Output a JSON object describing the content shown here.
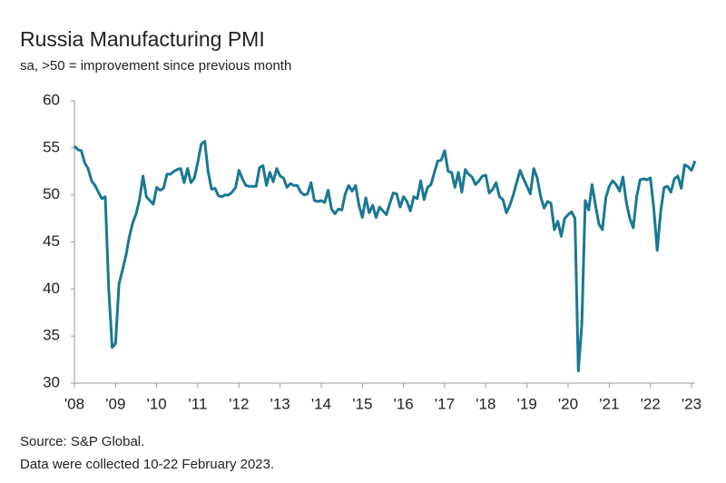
{
  "chart_data": {
    "type": "line",
    "title": "Russia Manufacturing PMI",
    "subtitle": "sa, >50 = improvement since previous month",
    "source": "Source: S&P Global.",
    "note": "Data were collected 10-22 February 2023.",
    "categories": [
      "'08",
      null,
      null,
      null,
      null,
      null,
      null,
      null,
      null,
      null,
      null,
      null,
      "'09",
      null,
      null,
      null,
      null,
      null,
      null,
      null,
      null,
      null,
      null,
      null,
      "'10",
      null,
      null,
      null,
      null,
      null,
      null,
      null,
      null,
      null,
      null,
      null,
      "'11",
      null,
      null,
      null,
      null,
      null,
      null,
      null,
      null,
      null,
      null,
      null,
      "'12",
      null,
      null,
      null,
      null,
      null,
      null,
      null,
      null,
      null,
      null,
      null,
      "'13",
      null,
      null,
      null,
      null,
      null,
      null,
      null,
      null,
      null,
      null,
      null,
      "'14",
      null,
      null,
      null,
      null,
      null,
      null,
      null,
      null,
      null,
      null,
      null,
      "'15",
      null,
      null,
      null,
      null,
      null,
      null,
      null,
      null,
      null,
      null,
      null,
      "'16",
      null,
      null,
      null,
      null,
      null,
      null,
      null,
      null,
      null,
      null,
      null,
      "'17",
      null,
      null,
      null,
      null,
      null,
      null,
      null,
      null,
      null,
      null,
      null,
      "'18",
      null,
      null,
      null,
      null,
      null,
      null,
      null,
      null,
      null,
      null,
      null,
      "'19",
      null,
      null,
      null,
      null,
      null,
      null,
      null,
      null,
      null,
      null,
      null,
      "'20",
      null,
      null,
      null,
      null,
      null,
      null,
      null,
      null,
      null,
      null,
      null,
      "'21",
      null,
      null,
      null,
      null,
      null,
      null,
      null,
      null,
      null,
      null,
      null,
      "'22",
      null,
      null,
      null,
      null,
      null,
      null,
      null,
      null,
      null,
      null,
      null,
      "'23",
      null
    ],
    "series": [
      {
        "name": "Russia Manufacturing PMI",
        "color": "#1a7892",
        "values": [
          55.2,
          54.8,
          54.7,
          53.4,
          52.8,
          51.5,
          51.0,
          50.3,
          49.6,
          49.8,
          40.0,
          33.8,
          34.2,
          40.5,
          42.0,
          43.5,
          45.5,
          47.0,
          48.0,
          49.5,
          52.0,
          49.8,
          49.4,
          49.0,
          50.8,
          50.5,
          50.7,
          52.2,
          52.2,
          52.5,
          52.7,
          52.8,
          51.3,
          52.8,
          51.3,
          51.8,
          53.5,
          55.4,
          55.7,
          52.5,
          50.6,
          50.7,
          49.9,
          49.8,
          50.0,
          50.0,
          50.3,
          50.8,
          52.6,
          51.7,
          51.0,
          50.9,
          50.9,
          50.9,
          52.9,
          53.1,
          51.0,
          52.4,
          51.4,
          52.8,
          52.0,
          51.8,
          50.8,
          51.2,
          51.0,
          51.0,
          50.3,
          50.0,
          50.1,
          51.3,
          49.4,
          49.3,
          49.4,
          49.2,
          50.5,
          48.5,
          48.0,
          48.5,
          48.4,
          50.1,
          51.0,
          50.4,
          51.0,
          48.9,
          47.6,
          49.7,
          48.1,
          48.9,
          47.6,
          48.7,
          48.3,
          47.9,
          49.1,
          50.2,
          50.1,
          48.7,
          49.8,
          49.3,
          48.3,
          49.8,
          49.6,
          51.5,
          49.5,
          50.8,
          51.1,
          52.4,
          53.6,
          53.7,
          54.7,
          52.5,
          52.4,
          50.8,
          52.4,
          50.3,
          52.7,
          52.2,
          51.9,
          51.1,
          51.5,
          52.0,
          52.1,
          50.2,
          50.6,
          51.3,
          49.8,
          49.5,
          48.1,
          48.9,
          50.0,
          51.3,
          52.6,
          51.7,
          50.9,
          50.1,
          52.8,
          51.8,
          49.8,
          48.6,
          49.3,
          49.1,
          46.3,
          47.2,
          45.6,
          47.5,
          47.9,
          48.2,
          47.5,
          31.3,
          36.2,
          49.4,
          48.4,
          51.1,
          48.9,
          46.9,
          46.3,
          49.7,
          50.9,
          51.5,
          51.1,
          50.4,
          51.9,
          49.2,
          47.5,
          46.5,
          49.8,
          51.6,
          51.7,
          51.6,
          51.8,
          48.6,
          44.1,
          48.2,
          50.8,
          50.9,
          50.3,
          51.7,
          52.0,
          50.7,
          53.2,
          53.0,
          52.6,
          53.6
        ]
      }
    ],
    "ylim": [
      30,
      60
    ],
    "yticks": [
      30,
      35,
      40,
      45,
      50,
      55,
      60
    ],
    "grid": false
  }
}
